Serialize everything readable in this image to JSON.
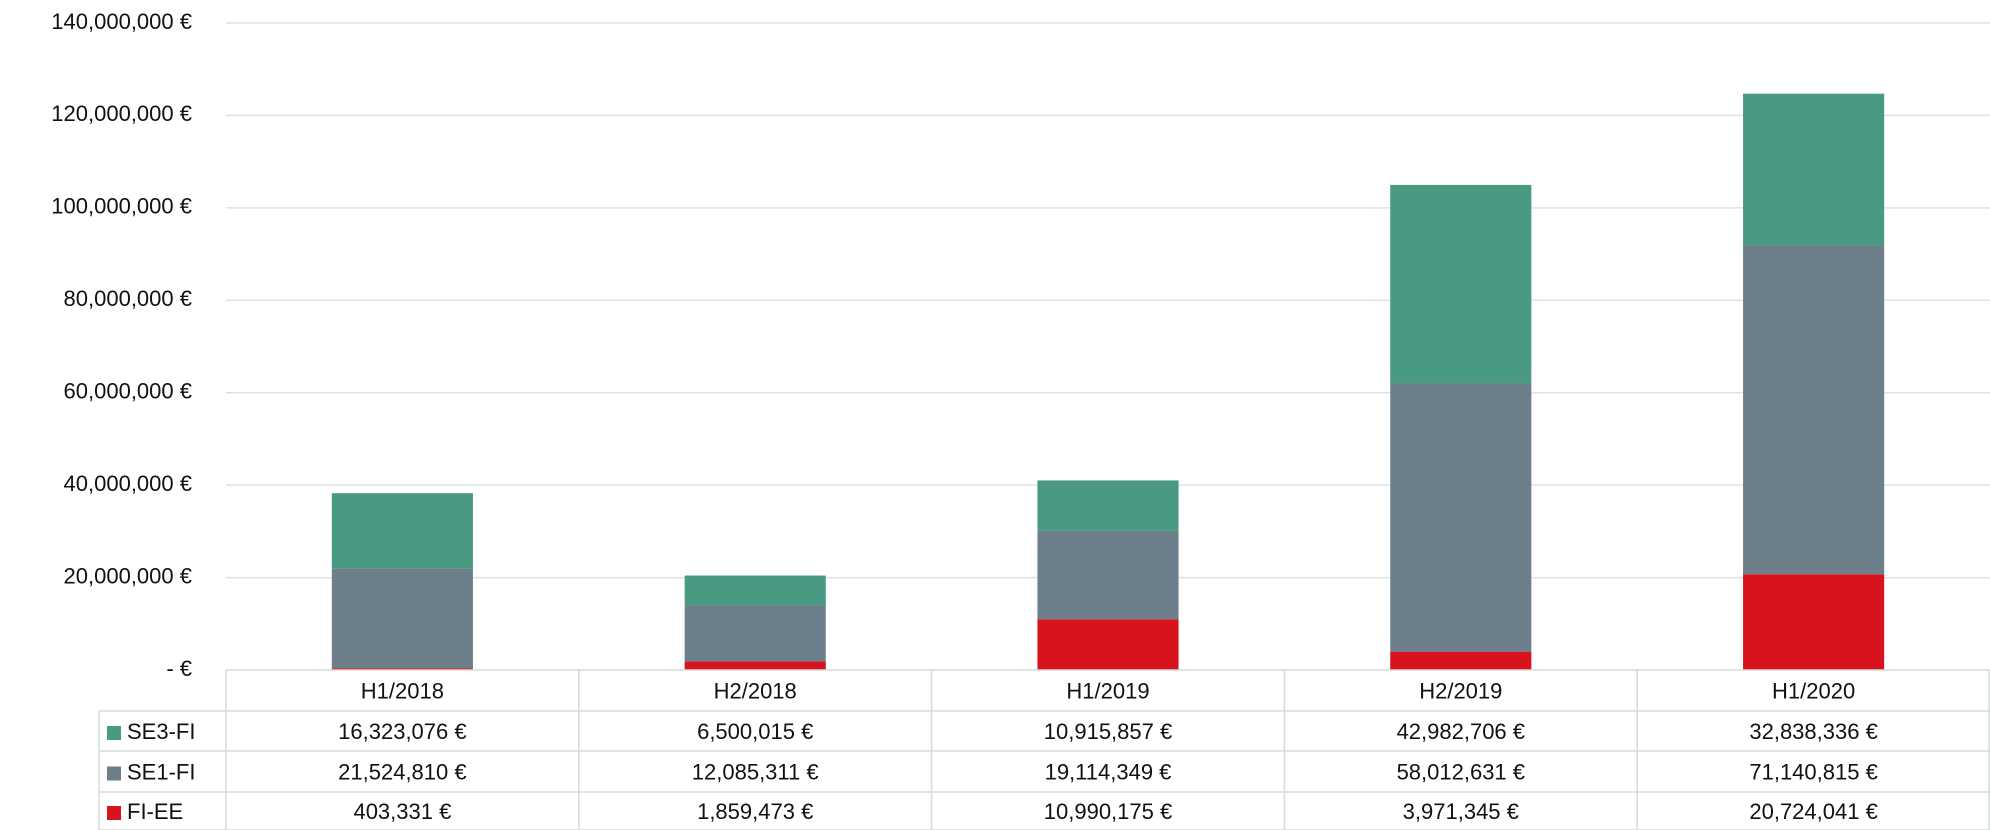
{
  "chart_data": {
    "type": "stacked-bar",
    "categories": [
      "H1/2018",
      "H2/2018",
      "H1/2019",
      "H2/2019",
      "H1/2020"
    ],
    "series": [
      {
        "name": "SE3-FI",
        "color": "#4a9a83",
        "values": [
          16323076,
          6500015,
          10915857,
          42982706,
          32838336
        ],
        "value_labels": [
          "16,323,076 €",
          "6,500,015 €",
          "10,915,857 €",
          "42,982,706 €",
          "32,838,336 €"
        ]
      },
      {
        "name": "SE1-FI",
        "color": "#6c7f8b",
        "values": [
          21524810,
          12085311,
          19114349,
          58012631,
          71140815
        ],
        "value_labels": [
          "21,524,810 €",
          "12,085,311 €",
          "19,114,349 €",
          "58,012,631 €",
          "71,140,815 €"
        ]
      },
      {
        "name": "FI-EE",
        "color": "#d7141e",
        "values": [
          403331,
          1859473,
          10990175,
          3971345,
          20724041
        ],
        "value_labels": [
          "403,331 €",
          "1,859,473 €",
          "10,990,175 €",
          "3,971,345 €",
          "20,724,041 €"
        ]
      }
    ],
    "ylim": [
      0,
      140000000
    ],
    "yticks": [
      {
        "value": 0,
        "label": "-  €"
      },
      {
        "value": 20000000,
        "label": "20,000,000 €"
      },
      {
        "value": 40000000,
        "label": "40,000,000 €"
      },
      {
        "value": 60000000,
        "label": "60,000,000 €"
      },
      {
        "value": 80000000,
        "label": "80,000,000 €"
      },
      {
        "value": 100000000,
        "label": "100,000,000 €"
      },
      {
        "value": 120000000,
        "label": "120,000,000 €"
      },
      {
        "value": 140000000,
        "label": "140,000,000 €"
      }
    ],
    "grid": true,
    "legend": "data-table"
  }
}
